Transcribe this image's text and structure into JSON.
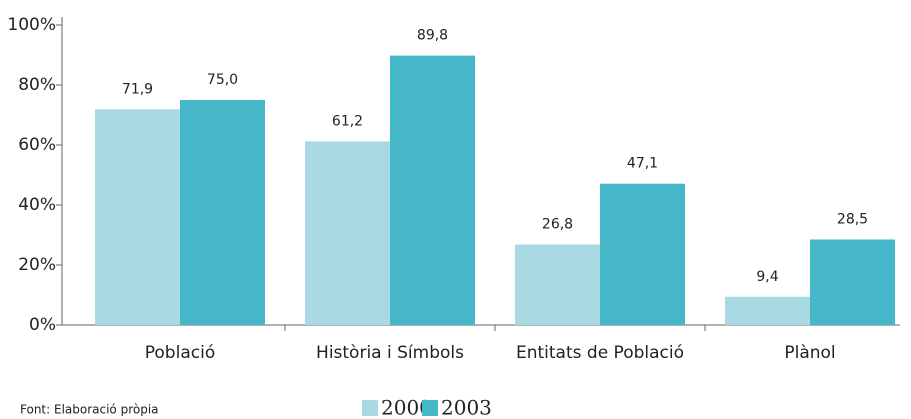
{
  "chart_data": {
    "type": "bar",
    "categories": [
      "Població",
      "Història i Símbols",
      "Entitats de Població",
      "Plànol"
    ],
    "series": [
      {
        "name": "2000",
        "color": "#a9d9e2",
        "values": [
          71.9,
          61.2,
          26.8,
          9.4
        ],
        "value_labels": [
          "71,9",
          "61,2",
          "26,8",
          "9,4"
        ]
      },
      {
        "name": "2003",
        "color": "#46b6c9",
        "values": [
          75.0,
          89.8,
          47.1,
          28.5
        ],
        "value_labels": [
          "75,0",
          "89,8",
          "47,1",
          "28,5"
        ]
      }
    ],
    "ylim": [
      0,
      100
    ],
    "yticks": [
      {
        "value": 0,
        "label": "0%"
      },
      {
        "value": 20,
        "label": "20%"
      },
      {
        "value": 40,
        "label": "40%"
      },
      {
        "value": 60,
        "label": "60%"
      },
      {
        "value": 80,
        "label": "80%"
      },
      {
        "value": 100,
        "label": "100%"
      }
    ],
    "source": "Font: Elaboració pròpia"
  }
}
